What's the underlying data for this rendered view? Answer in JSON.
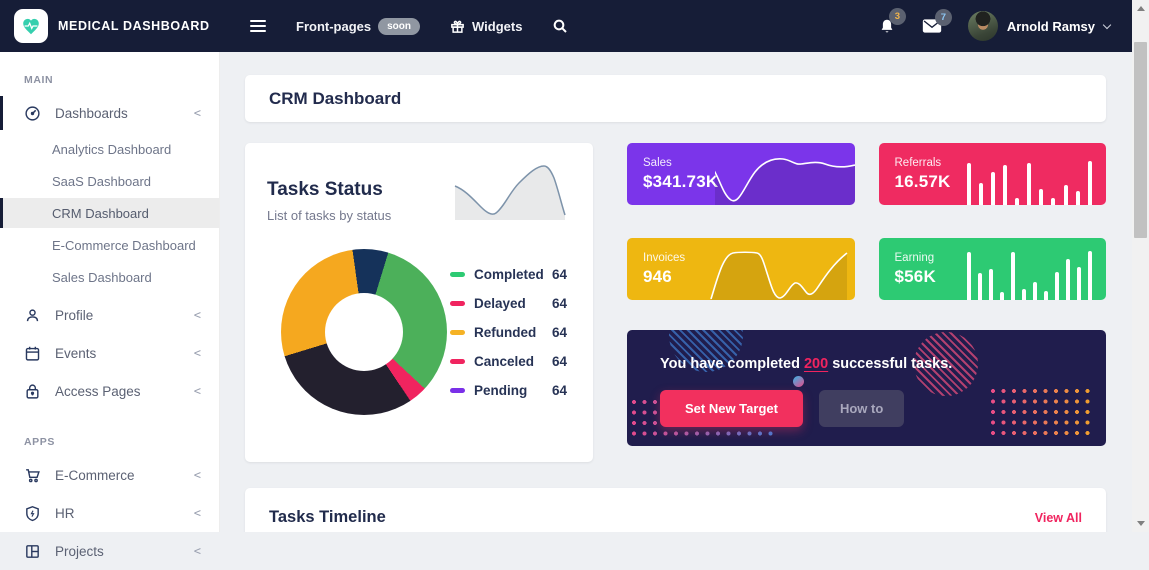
{
  "navbar": {
    "brand": "MEDICAL DASHBOARD",
    "menu": {
      "front_pages": "Front-pages",
      "front_pages_badge": "soon",
      "widgets": "Widgets"
    },
    "notifications": {
      "bell_count": "3",
      "mail_count": "7"
    },
    "user": {
      "name": "Arnold Ramsy"
    }
  },
  "icons": {
    "menu-icon": "hamburger三bars",
    "gift-icon": "gift box",
    "search-icon": "magnifier",
    "bell-icon": "bell",
    "mail-icon": "envelope",
    "chevron-down-icon": "v",
    "chevron-collapse": "<"
  },
  "sidebar": {
    "sections": [
      {
        "label": "MAIN",
        "items": [
          {
            "label": "Dashboards",
            "icon": "speedometer-icon",
            "chevron": "<",
            "children": [
              "Analytics Dashboard",
              "SaaS Dashboard",
              "CRM Dashboard",
              "E-Commerce Dashboard",
              "Sales Dashboard"
            ],
            "active_child": "CRM Dashboard"
          },
          {
            "label": "Profile",
            "icon": "user-icon",
            "chevron": "<"
          },
          {
            "label": "Events",
            "icon": "calendar-icon",
            "chevron": "<"
          },
          {
            "label": "Access Pages",
            "icon": "lock-icon",
            "chevron": "<"
          }
        ]
      },
      {
        "label": "APPS",
        "items": [
          {
            "label": "E-Commerce",
            "icon": "cart-icon",
            "chevron": "<"
          },
          {
            "label": "HR",
            "icon": "shield-icon",
            "chevron": "<"
          },
          {
            "label": "Projects",
            "icon": "grid-icon",
            "chevron": "<"
          }
        ]
      }
    ]
  },
  "page": {
    "title": "CRM Dashboard"
  },
  "tasks_status": {
    "title": "Tasks Status",
    "subtitle": "List of tasks by status",
    "chart_data": {
      "type": "donut",
      "labels": [
        "Completed",
        "Delayed",
        "Refunded",
        "Canceled",
        "Pending"
      ],
      "values": [
        64,
        64,
        64,
        64,
        64
      ],
      "legend_colors": [
        "#2dca73",
        "#f0245f",
        "#f5b225",
        "#f0245f",
        "#7a30e8"
      ],
      "visual_segments": [
        {
          "color": "#15325a",
          "from": 0,
          "to": 25
        },
        {
          "color": "#4cb05a",
          "from": 25,
          "to": 141
        },
        {
          "color": "#f0245f",
          "from": 141,
          "to": 154
        },
        {
          "color": "#23202e",
          "from": 154,
          "to": 261
        },
        {
          "color": "#f5a81f",
          "from": 261,
          "to": 360
        }
      ]
    },
    "legend": [
      {
        "label": "Completed",
        "value": "64",
        "color": "#2dca73"
      },
      {
        "label": "Delayed",
        "value": "64",
        "color": "#f0245f"
      },
      {
        "label": "Refunded",
        "value": "64",
        "color": "#f5b225"
      },
      {
        "label": "Canceled",
        "value": "64",
        "color": "#f0245f"
      },
      {
        "label": "Pending",
        "value": "64",
        "color": "#7a30e8"
      }
    ]
  },
  "stat_cards": [
    {
      "label": "Sales",
      "value": "$341.73K",
      "color": "#7b35ea",
      "chart": "line"
    },
    {
      "label": "Referrals",
      "value": "16.57K",
      "color": "#ef2b61",
      "chart": "bars",
      "bars": [
        78,
        40,
        62,
        74,
        13,
        77,
        30,
        13,
        37,
        26,
        82
      ]
    },
    {
      "label": "Invoices",
      "value": "946",
      "color": "#eeb711",
      "chart": "line"
    },
    {
      "label": "Earning",
      "value": "$56K",
      "color": "#2dca73",
      "chart": "bars",
      "bars": [
        88,
        50,
        57,
        15,
        88,
        21,
        33,
        17,
        51,
        76,
        61,
        90
      ]
    }
  ],
  "banner": {
    "text_before": "You have completed ",
    "highlight": "200",
    "text_after": " successful tasks.",
    "primary_button": "Set New Target",
    "secondary_button": "How to"
  },
  "tasks_timeline": {
    "title": "Tasks Timeline",
    "link": "View All"
  }
}
